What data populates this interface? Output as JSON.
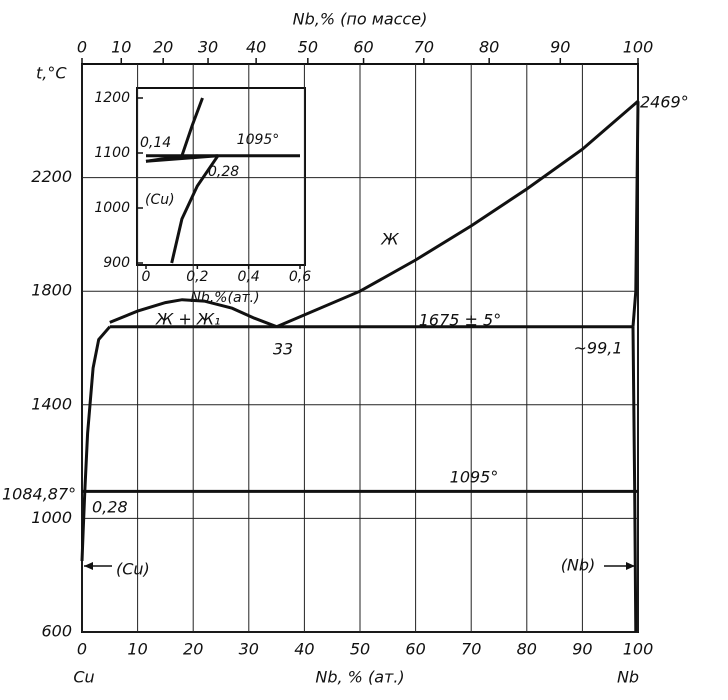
{
  "chart_data": [
    {
      "type": "line",
      "x_label": "Nb, % (ат.)",
      "top_x_label": "Nb,% (по массе)",
      "y_label": "t,°C",
      "xlim": [
        0,
        100
      ],
      "xticks": [
        0,
        10,
        20,
        30,
        40,
        50,
        60,
        70,
        80,
        90,
        100
      ],
      "top_xticks": [
        0,
        10,
        20,
        30,
        40,
        50,
        60,
        70,
        80,
        90,
        100
      ],
      "ylim": [
        600,
        2600
      ],
      "yticks": [
        600,
        1000,
        1400,
        1800,
        2200
      ],
      "grid": true,
      "color": "#111111",
      "series": [
        {
          "x": [
            35,
            50,
            60,
            70,
            80,
            90,
            100
          ],
          "values": [
            1675,
            1800,
            1910,
            2030,
            2160,
            2300,
            2469
          ]
        },
        {
          "x": [
            5,
            10,
            15,
            18,
            22,
            27,
            31,
            35
          ],
          "values": [
            1690,
            1730,
            1760,
            1770,
            1765,
            1740,
            1705,
            1675
          ]
        },
        {
          "x": [
            0.5,
            1,
            2,
            3,
            5
          ],
          "values": [
            1095,
            1300,
            1530,
            1630,
            1675
          ]
        },
        {
          "x": [
            5,
            99.1
          ],
          "values": [
            1675,
            1675
          ]
        },
        {
          "x": [
            0,
            100
          ],
          "values": [
            1095,
            1095
          ]
        },
        {
          "x": [
            100,
            99.6,
            99.1
          ],
          "values": [
            2469,
            1800,
            1675
          ]
        },
        {
          "x": [
            99.1,
            99.4,
            99.6
          ],
          "values": [
            1675,
            1095,
            600
          ]
        },
        {
          "x": [
            0.5,
            0.2,
            0
          ],
          "values": [
            1095,
            950,
            850
          ]
        }
      ],
      "annotations": [
        "2469°",
        "Ж",
        "Ж + Ж₁",
        "33",
        "1675 ± 5°",
        "~99,1",
        "1095°",
        "1084,87°",
        "0,28",
        "(Cu)",
        "(Nb)",
        "Cu",
        "Nb"
      ]
    },
    {
      "type": "line",
      "x_label": "Nb,%(ат.)",
      "xlim": [
        0,
        0.6
      ],
      "xticks": [
        0,
        {
          "value": 0.2,
          "label": "0,2"
        },
        {
          "value": 0.4,
          "label": "0,4"
        },
        {
          "value": 0.6,
          "label": "0,6"
        }
      ],
      "ylim": [
        900,
        1200
      ],
      "yticks": [
        900,
        1000,
        1100,
        1200
      ],
      "color": "#111111",
      "series": [
        {
          "x": [
            0,
            0.14,
            0.18,
            0.22
          ],
          "values": [
            1084.87,
            1095,
            1150,
            1200
          ]
        },
        {
          "x": [
            0,
            0.28
          ],
          "values": [
            1084.87,
            1095
          ]
        },
        {
          "x": [
            0,
            0.6
          ],
          "values": [
            1095,
            1095
          ]
        },
        {
          "x": [
            0.28,
            0.2,
            0.14,
            0.1
          ],
          "values": [
            1095,
            1040,
            980,
            900
          ]
        }
      ],
      "annotations": [
        "0,14",
        "1095°",
        "0,28",
        "(Cu)"
      ]
    }
  ]
}
